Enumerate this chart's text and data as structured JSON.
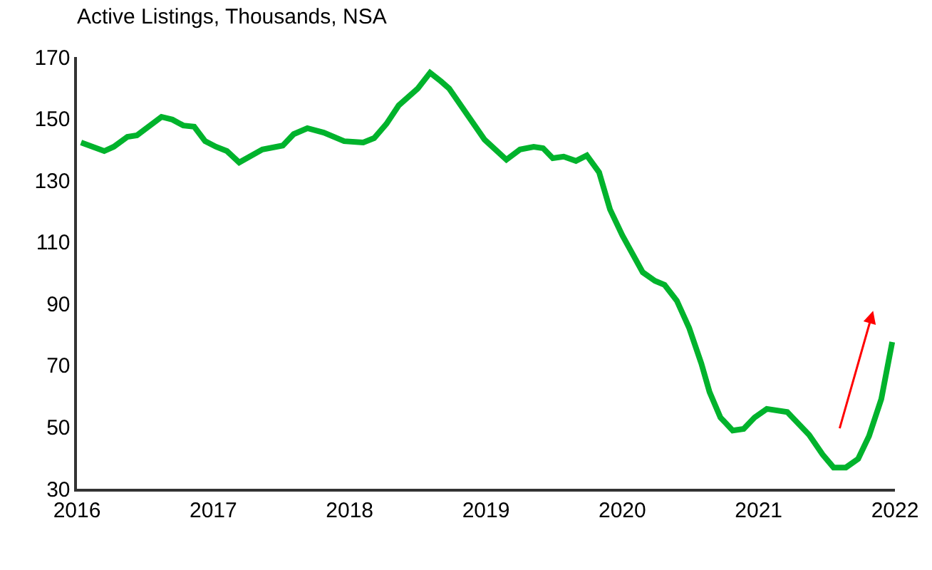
{
  "chart_data": {
    "type": "line",
    "title": "Active Listings, Thousands, NSA",
    "x": [
      2016.03,
      2016.2,
      2016.27,
      2016.37,
      2016.44,
      2016.62,
      2016.7,
      2016.78,
      2016.86,
      2016.94,
      2017.02,
      2017.1,
      2017.19,
      2017.36,
      2017.51,
      2017.59,
      2017.69,
      2017.81,
      2017.96,
      2018.1,
      2018.18,
      2018.27,
      2018.36,
      2018.5,
      2018.59,
      2018.67,
      2018.73,
      2018.99,
      2019.15,
      2019.25,
      2019.35,
      2019.42,
      2019.49,
      2019.57,
      2019.66,
      2019.74,
      2019.83,
      2019.91,
      2020.0,
      2020.15,
      2020.24,
      2020.31,
      2020.4,
      2020.49,
      2020.58,
      2020.64,
      2020.72,
      2020.81,
      2020.89,
      2020.97,
      2021.06,
      2021.21,
      2021.37,
      2021.47,
      2021.55,
      2021.64,
      2021.73,
      2021.81,
      2021.9,
      2021.98
    ],
    "series": [
      {
        "color": "#00b32c",
        "values": [
          142.3,
          139.5,
          140.9,
          144.1,
          144.6,
          150.6,
          149.7,
          147.8,
          147.4,
          142.7,
          140.9,
          139.5,
          135.8,
          140.0,
          141.3,
          145.0,
          146.9,
          145.5,
          142.7,
          142.3,
          143.7,
          148.3,
          154.3,
          159.8,
          164.9,
          162.1,
          159.8,
          143.2,
          136.7,
          140.0,
          140.9,
          140.4,
          137.2,
          137.7,
          136.3,
          138.1,
          132.6,
          120.6,
          112.2,
          100.2,
          97.4,
          96.1,
          91.0,
          82.2,
          70.6,
          61.4,
          53.1,
          48.9,
          49.4,
          53.1,
          55.9,
          54.9,
          47.5,
          41.1,
          36.9,
          36.9,
          39.7,
          47.1,
          59.1,
          77.6
        ]
      }
    ],
    "xlim": [
      2016,
      2022
    ],
    "xticks": [
      2016,
      2017,
      2018,
      2019,
      2020,
      2021,
      2022
    ],
    "ylim": [
      30,
      170
    ],
    "yticks": [
      30,
      50,
      70,
      90,
      110,
      130,
      150,
      170
    ],
    "marker": "none",
    "line_style": "solid"
  }
}
